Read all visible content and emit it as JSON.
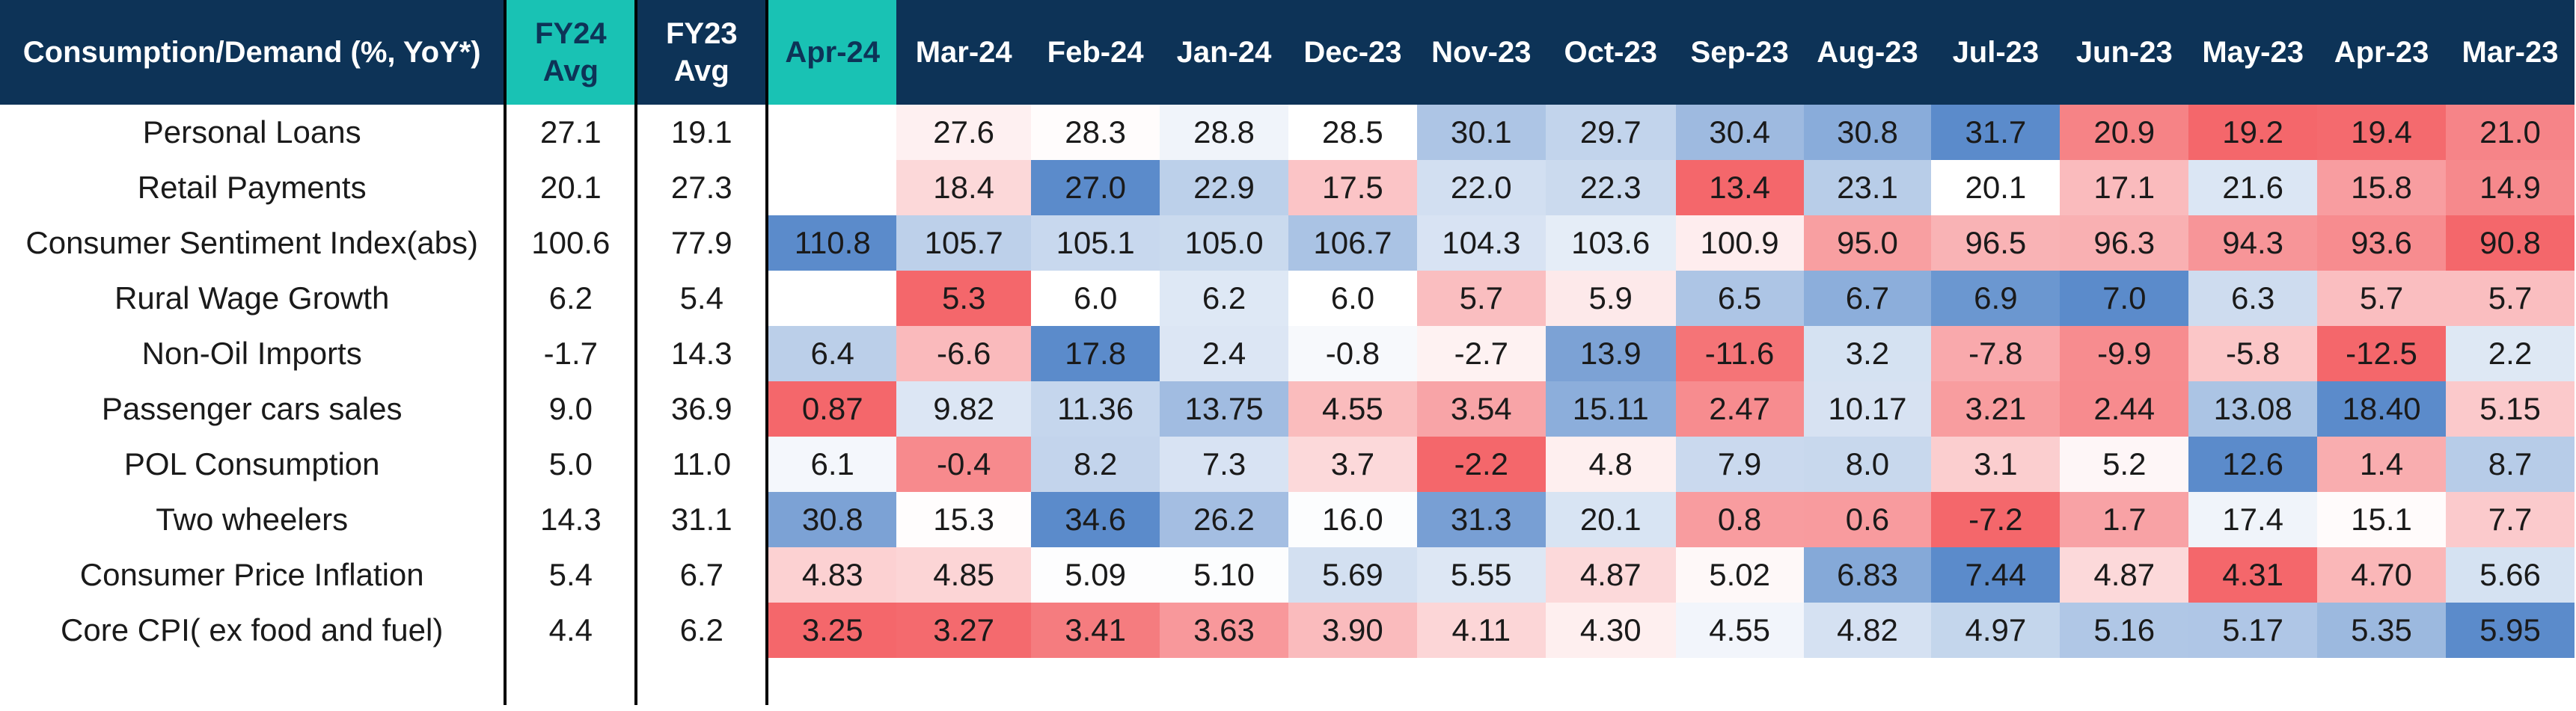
{
  "table": {
    "header_label": "Consumption/Demand (%, YoY*)",
    "fy24_label": "FY24 Avg",
    "fy23_label": "FY23 Avg",
    "months": [
      "Apr-24",
      "Mar-24",
      "Feb-24",
      "Jan-24",
      "Dec-23",
      "Nov-23",
      "Oct-23",
      "Sep-23",
      "Aug-23",
      "Jul-23",
      "Jun-23",
      "May-23",
      "Apr-23",
      "Mar-23"
    ],
    "highlighted_months": [
      "Apr-24"
    ]
  },
  "colors": {
    "header_bg": "#0d3357",
    "highlight_bg": "#19c2b4",
    "scale_high": "#5b8bcb",
    "scale_mid": "#ffffff",
    "scale_low": "#f4676b"
  },
  "chart_data": {
    "type": "table",
    "columns": [
      "FY24 Avg",
      "FY23 Avg",
      "Apr-24",
      "Mar-24",
      "Feb-24",
      "Jan-24",
      "Dec-23",
      "Nov-23",
      "Oct-23",
      "Sep-23",
      "Aug-23",
      "Jul-23",
      "Jun-23",
      "May-23",
      "Apr-23",
      "Mar-23"
    ],
    "rows": [
      {
        "label": "Personal Loans",
        "fy24": "27.1",
        "fy23": "19.1",
        "values": [
          "",
          "27.6",
          "28.3",
          "28.8",
          "28.5",
          "30.1",
          "29.7",
          "30.4",
          "30.8",
          "31.7",
          "20.9",
          "19.2",
          "19.4",
          "21.0"
        ]
      },
      {
        "label": "Retail Payments",
        "fy24": "20.1",
        "fy23": "27.3",
        "values": [
          "",
          "18.4",
          "27.0",
          "22.9",
          "17.5",
          "22.0",
          "22.3",
          "13.4",
          "23.1",
          "20.1",
          "17.1",
          "21.6",
          "15.8",
          "14.9"
        ]
      },
      {
        "label": "Consumer Sentiment Index(abs)",
        "fy24": "100.6",
        "fy23": "77.9",
        "values": [
          "110.8",
          "105.7",
          "105.1",
          "105.0",
          "106.7",
          "104.3",
          "103.6",
          "100.9",
          "95.0",
          "96.5",
          "96.3",
          "94.3",
          "93.6",
          "90.8"
        ]
      },
      {
        "label": "Rural Wage Growth",
        "fy24": "6.2",
        "fy23": "5.4",
        "values": [
          "",
          "5.3",
          "6.0",
          "6.2",
          "6.0",
          "5.7",
          "5.9",
          "6.5",
          "6.7",
          "6.9",
          "7.0",
          "6.3",
          "5.7",
          "5.7"
        ]
      },
      {
        "label": "Non-Oil Imports",
        "fy24": "-1.7",
        "fy23": "14.3",
        "values": [
          "6.4",
          "-6.6",
          "17.8",
          "2.4",
          "-0.8",
          "-2.7",
          "13.9",
          "-11.6",
          "3.2",
          "-7.8",
          "-9.9",
          "-5.8",
          "-12.5",
          "2.2"
        ]
      },
      {
        "label": "Passenger cars sales",
        "fy24": "9.0",
        "fy23": "36.9",
        "values": [
          "0.87",
          "9.82",
          "11.36",
          "13.75",
          "4.55",
          "3.54",
          "15.11",
          "2.47",
          "10.17",
          "3.21",
          "2.44",
          "13.08",
          "18.40",
          "5.15"
        ]
      },
      {
        "label": "POL Consumption",
        "fy24": "5.0",
        "fy23": "11.0",
        "values": [
          "6.1",
          "-0.4",
          "8.2",
          "7.3",
          "3.7",
          "-2.2",
          "4.8",
          "7.9",
          "8.0",
          "3.1",
          "5.2",
          "12.6",
          "1.4",
          "8.7"
        ]
      },
      {
        "label": "Two wheelers",
        "fy24": "14.3",
        "fy23": "31.1",
        "values": [
          "30.8",
          "15.3",
          "34.6",
          "26.2",
          "16.0",
          "31.3",
          "20.1",
          "0.8",
          "0.6",
          "-7.2",
          "1.7",
          "17.4",
          "15.1",
          "7.7"
        ]
      },
      {
        "label": "Consumer Price Inflation",
        "fy24": "5.4",
        "fy23": "6.7",
        "values": [
          "4.83",
          "4.85",
          "5.09",
          "5.10",
          "5.69",
          "5.55",
          "4.87",
          "5.02",
          "6.83",
          "7.44",
          "4.87",
          "4.31",
          "4.70",
          "5.66"
        ]
      },
      {
        "label": "Core CPI( ex food and fuel)",
        "fy24": "4.4",
        "fy23": "6.2",
        "values": [
          "3.25",
          "3.27",
          "3.41",
          "3.63",
          "3.90",
          "4.11",
          "4.30",
          "4.55",
          "4.82",
          "4.97",
          "5.16",
          "5.17",
          "5.35",
          "5.95"
        ]
      }
    ]
  }
}
